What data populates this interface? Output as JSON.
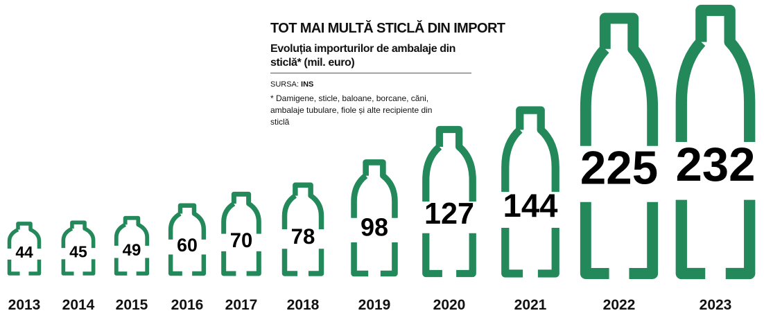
{
  "chart_data": {
    "type": "bottle",
    "title": "TOT MAI MULTĂ STICLĂ DIN IMPORT",
    "subtitle": "Evoluția importurilor de ambalaje din sticlă* (mil. euro)",
    "source_label": "SURSA:",
    "source": "INS",
    "note": "* Damigene, sticle, baloane, borcane, căni, ambalaje tubulare, fiole și alte recipiente din sticlă",
    "categories": [
      "2013",
      "2014",
      "2015",
      "2016",
      "2017",
      "2018",
      "2019",
      "2020",
      "2021",
      "2022",
      "2023"
    ],
    "values": [
      44,
      45,
      49,
      60,
      70,
      78,
      98,
      127,
      144,
      225,
      232
    ],
    "color": "#23895a"
  }
}
